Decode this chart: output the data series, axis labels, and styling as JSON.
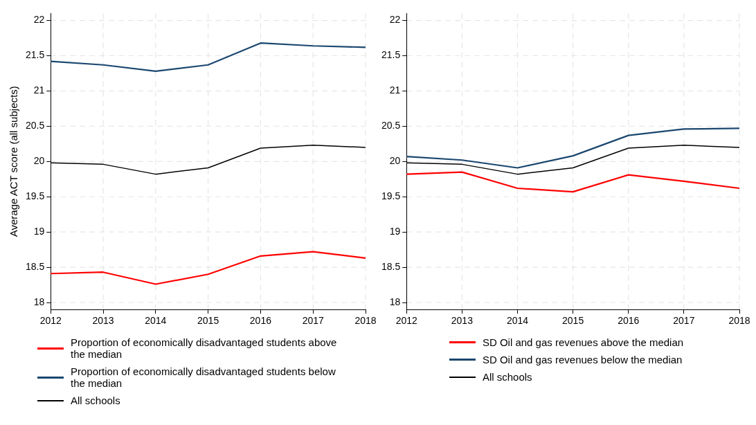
{
  "chart_data": [
    {
      "type": "line",
      "ylabel": "Average ACT score (all subjects)",
      "categories": [
        "2012",
        "2013",
        "2014",
        "2015",
        "2016",
        "2017",
        "2018"
      ],
      "ylim": [
        17.9,
        22.1
      ],
      "yticks": [
        18,
        18.5,
        19,
        19.5,
        20,
        20.5,
        21,
        21.5,
        22
      ],
      "grid": true,
      "legend": "bottom",
      "marker": "none",
      "line_style": "solid",
      "series": [
        {
          "name": "Proportion of economically disadvantaged students above the median",
          "color": "#ff0000",
          "values": [
            18.41,
            18.43,
            18.26,
            18.4,
            18.66,
            18.72,
            18.63
          ]
        },
        {
          "name": "Proportion of economically disadvantaged students below the median",
          "color": "#1a476f",
          "values": [
            21.42,
            21.37,
            21.28,
            21.37,
            21.68,
            21.64,
            21.62
          ]
        },
        {
          "name": "All schools",
          "color": "#000000",
          "values": [
            19.98,
            19.96,
            19.82,
            19.91,
            20.19,
            20.23,
            20.2
          ]
        }
      ]
    },
    {
      "type": "line",
      "categories": [
        "2012",
        "2013",
        "2014",
        "2015",
        "2016",
        "2017",
        "2018"
      ],
      "ylim": [
        17.9,
        22.1
      ],
      "yticks": [
        18,
        18.5,
        19,
        19.5,
        20,
        20.5,
        21,
        21.5,
        22
      ],
      "grid": true,
      "legend": "bottom",
      "marker": "none",
      "line_style": "solid",
      "series": [
        {
          "name": "SD Oil and gas revenues above the median",
          "color": "#ff0000",
          "values": [
            19.82,
            19.85,
            19.62,
            19.57,
            19.81,
            19.72,
            19.62
          ]
        },
        {
          "name": "SD Oil and gas revenues below the median",
          "color": "#1a476f",
          "values": [
            20.07,
            20.02,
            19.91,
            20.08,
            20.37,
            20.46,
            20.47
          ]
        },
        {
          "name": "All schools",
          "color": "#000000",
          "values": [
            19.98,
            19.96,
            19.82,
            19.91,
            20.19,
            20.23,
            20.2
          ]
        }
      ]
    }
  ]
}
